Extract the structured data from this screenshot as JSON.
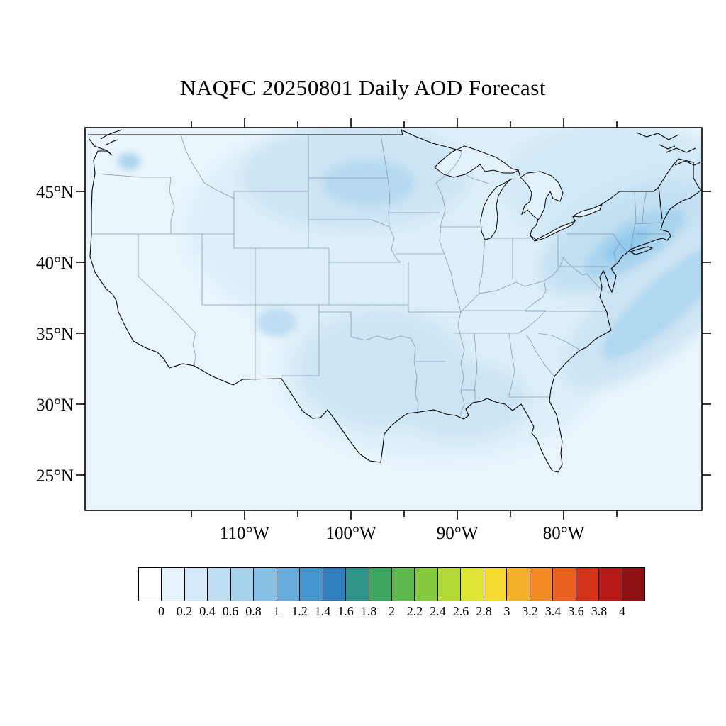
{
  "title": "NAQFC 20250801 Daily AOD Forecast",
  "axes": {
    "lat_labels": [
      "45°N",
      "40°N",
      "35°N",
      "30°N",
      "25°N"
    ],
    "lat_values": [
      45,
      40,
      35,
      30,
      25
    ],
    "lat_tick_values": [
      45,
      40,
      35,
      30,
      25
    ],
    "lon_labels": [
      "110°W",
      "100°W",
      "90°W",
      "80°W"
    ],
    "lon_values": [
      -110,
      -100,
      -90,
      -80
    ],
    "lon_tick_values": [
      -115,
      -110,
      -105,
      -100,
      -95,
      -90,
      -85,
      -80,
      -75
    ]
  },
  "colorbar": {
    "labels": [
      "0",
      "0.2",
      "0.4",
      "0.6",
      "0.8",
      "1",
      "1.2",
      "1.4",
      "1.6",
      "1.8",
      "2",
      "2.2",
      "2.4",
      "2.6",
      "2.8",
      "3",
      "3.2",
      "3.4",
      "3.6",
      "3.8",
      "4"
    ],
    "colors": [
      "#ffffff",
      "#e8f4fb",
      "#d5eaf8",
      "#c0dff4",
      "#a6d2ee",
      "#88c1e6",
      "#66addc",
      "#4496cf",
      "#2f7fbe",
      "#30968b",
      "#3aa65f",
      "#5cb84b",
      "#85ca3e",
      "#b2d938",
      "#dde434",
      "#f3d930",
      "#f6b02a",
      "#f28b23",
      "#ec611d",
      "#d43318",
      "#b51a16",
      "#8e1013"
    ]
  },
  "field": {
    "variable": "Daily AOD",
    "low_value_color": "#eaf5fb",
    "accent_patch_color": "#a8d3ee"
  }
}
